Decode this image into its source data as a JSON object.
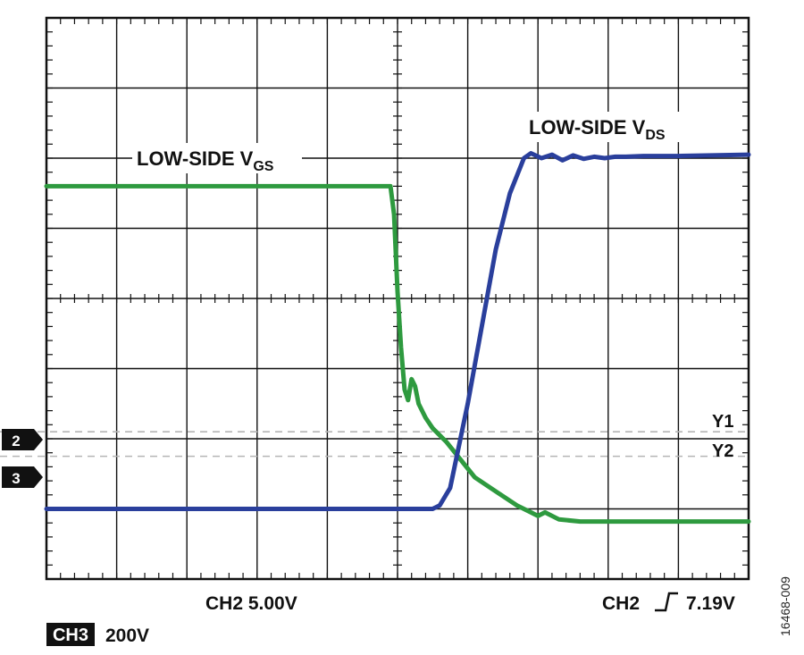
{
  "chart_data": {
    "type": "line",
    "title": "",
    "x_divisions": 10,
    "y_divisions": 8,
    "grid": true,
    "series": [
      {
        "name": "LOW-SIDE V",
        "name_sub": "GS",
        "channel": "2",
        "color": "#2e9a3f",
        "x": [
          0,
          4.9,
          4.95,
          5.0,
          5.05,
          5.1,
          5.15,
          5.2,
          5.25,
          5.3,
          5.4,
          5.5,
          5.7,
          5.9,
          6.1,
          6.4,
          6.7,
          6.9,
          7.0,
          7.1,
          7.3,
          7.6,
          8.0,
          9.0,
          10.0
        ],
        "y": [
          5.6,
          5.6,
          5.2,
          4.1,
          3.3,
          2.7,
          2.55,
          2.85,
          2.75,
          2.5,
          2.3,
          2.15,
          1.95,
          1.7,
          1.45,
          1.25,
          1.05,
          0.95,
          0.9,
          0.95,
          0.85,
          0.82,
          0.82,
          0.82,
          0.82
        ]
      },
      {
        "name": "LOW-SIDE V",
        "name_sub": "DS",
        "channel": "3",
        "color": "#2a3f9c",
        "x": [
          0,
          5.5,
          5.6,
          5.75,
          6.0,
          6.4,
          6.6,
          6.8,
          6.9,
          7.05,
          7.2,
          7.35,
          7.5,
          7.65,
          7.8,
          7.95,
          8.1,
          8.25,
          8.5,
          9.0,
          10.0
        ],
        "y": [
          1.0,
          1.0,
          1.05,
          1.3,
          2.5,
          4.7,
          5.5,
          6.0,
          6.07,
          6.0,
          6.05,
          5.97,
          6.04,
          5.99,
          6.02,
          6.0,
          6.02,
          6.02,
          6.03,
          6.03,
          6.05
        ]
      }
    ],
    "cursors": [
      {
        "label": "Y1",
        "y": 2.1
      },
      {
        "label": "Y2",
        "y": 1.75
      }
    ],
    "channel_markers": [
      {
        "label": "2",
        "y": 1.95
      },
      {
        "label": "3",
        "y": 1.4
      }
    ],
    "scale_ch2": "CH2 5.00V",
    "trigger_prefix": "CH2",
    "trigger_value": "7.19V",
    "ch3_badge": "CH3",
    "ch3_scale": "200V",
    "figure_id": "16468-009"
  }
}
